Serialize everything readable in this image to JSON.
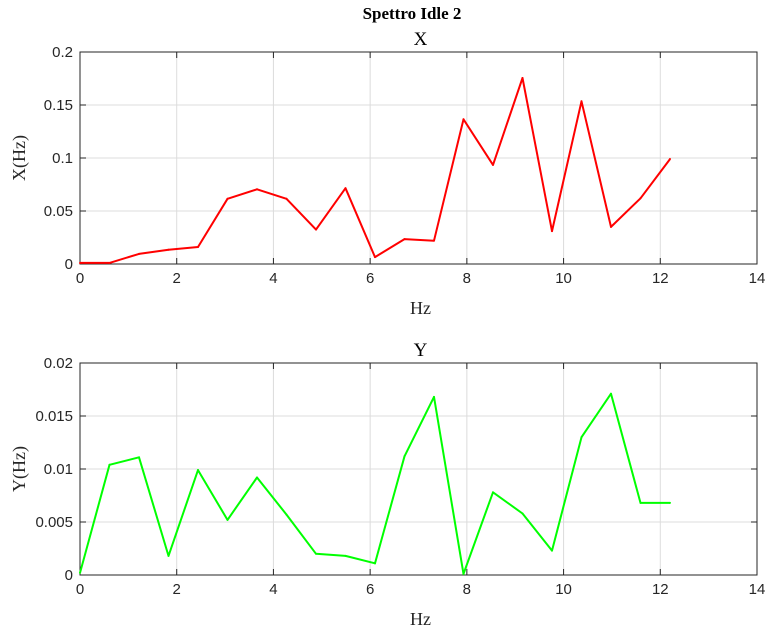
{
  "figure": {
    "super_title": "Spettro Idle 2"
  },
  "chart_data": [
    {
      "type": "line",
      "title": "X",
      "xlabel": "Hz",
      "ylabel": "X(Hz)",
      "xlim": [
        0,
        14
      ],
      "ylim": [
        0,
        0.2
      ],
      "xticks": [
        0,
        2,
        4,
        6,
        8,
        10,
        12,
        14
      ],
      "xtick_labels": [
        "0",
        "2",
        "4",
        "6",
        "8",
        "10",
        "12",
        "14"
      ],
      "yticks": [
        0,
        0.05,
        0.1,
        0.15,
        0.2
      ],
      "ytick_labels": [
        "0",
        "0.05",
        "0.1",
        "0.15",
        "0.2"
      ],
      "grid": true,
      "color": "#ff0000",
      "series": [
        {
          "x": [
            0,
            0.61,
            1.22,
            1.83,
            2.44,
            3.05,
            3.66,
            4.27,
            4.88,
            5.49,
            6.1,
            6.71,
            7.32,
            7.93,
            8.54,
            9.15,
            9.76,
            10.37,
            10.98,
            11.59,
            12.2
          ],
          "values": [
            0.001,
            0.001,
            0.0095,
            0.0135,
            0.016,
            0.0615,
            0.0705,
            0.0615,
            0.0325,
            0.0715,
            0.0065,
            0.0235,
            0.022,
            0.1365,
            0.0935,
            0.1755,
            0.031,
            0.1535,
            0.035,
            0.062,
            0.099
          ]
        }
      ]
    },
    {
      "type": "line",
      "title": "Y",
      "xlabel": "Hz",
      "ylabel": "Y(Hz)",
      "xlim": [
        0,
        14
      ],
      "ylim": [
        0,
        0.02
      ],
      "xticks": [
        0,
        2,
        4,
        6,
        8,
        10,
        12,
        14
      ],
      "xtick_labels": [
        "0",
        "2",
        "4",
        "6",
        "8",
        "10",
        "12",
        "14"
      ],
      "yticks": [
        0,
        0.005,
        0.01,
        0.015,
        0.02
      ],
      "ytick_labels": [
        "0",
        "0.005",
        "0.01",
        "0.015",
        "0.02"
      ],
      "grid": true,
      "color": "#00ff00",
      "series": [
        {
          "x": [
            0,
            0.61,
            1.22,
            1.83,
            2.44,
            3.05,
            3.66,
            4.27,
            4.88,
            5.49,
            6.1,
            6.71,
            7.32,
            7.93,
            8.54,
            9.15,
            9.76,
            10.37,
            10.98,
            11.59,
            12.2
          ],
          "values": [
            0.0002,
            0.0104,
            0.0111,
            0.0018,
            0.0099,
            0.0052,
            0.0092,
            0.0057,
            0.002,
            0.0018,
            0.0011,
            0.0112,
            0.0168,
            0.0001,
            0.0078,
            0.0058,
            0.0023,
            0.013,
            0.0171,
            0.0068,
            0.0068
          ]
        }
      ]
    }
  ]
}
